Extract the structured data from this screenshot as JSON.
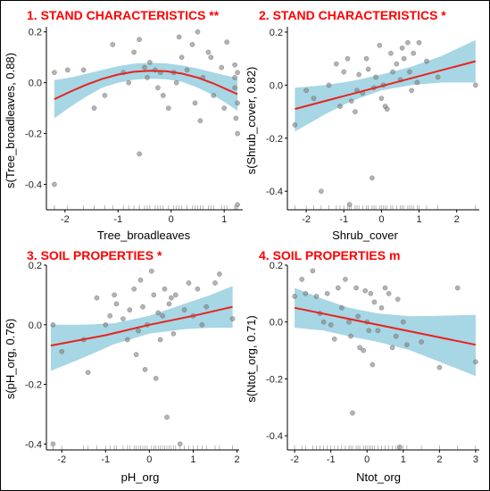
{
  "chart_data": [
    {
      "type": "scatter",
      "title": "1. STAND CHARACTERISTICS **",
      "xlabel": "Tree_broadleaves",
      "ylabel": "s(Tree_broadleaves, 0.88)",
      "xlim": [
        -2.35,
        1.35
      ],
      "ylim": [
        -0.5,
        0.22
      ],
      "xticks": [
        -2,
        -1,
        0,
        1
      ],
      "yticks": [
        -0.4,
        -0.2,
        0.0,
        0.2
      ],
      "xticklabels": [
        "-2",
        "-1",
        "0",
        "1"
      ],
      "yticklabels": [
        "-0.4",
        "-0.2",
        "0.0",
        "0.2"
      ],
      "fit": [
        [
          -2.2,
          -0.065
        ],
        [
          -1.9,
          -0.035
        ],
        [
          -1.6,
          -0.008
        ],
        [
          -1.3,
          0.015
        ],
        [
          -1.0,
          0.032
        ],
        [
          -0.7,
          0.043
        ],
        [
          -0.4,
          0.047
        ],
        [
          -0.1,
          0.045
        ],
        [
          0.2,
          0.036
        ],
        [
          0.5,
          0.02
        ],
        [
          0.8,
          -0.003
        ],
        [
          1.0,
          -0.022
        ],
        [
          1.25,
          -0.045
        ]
      ],
      "ci_upper": [
        [
          -2.2,
          0.01
        ],
        [
          -1.9,
          0.02
        ],
        [
          -1.6,
          0.035
        ],
        [
          -1.3,
          0.05
        ],
        [
          -1.0,
          0.065
        ],
        [
          -0.7,
          0.075
        ],
        [
          -0.4,
          0.078
        ],
        [
          -0.1,
          0.076
        ],
        [
          0.2,
          0.068
        ],
        [
          0.5,
          0.056
        ],
        [
          0.8,
          0.04
        ],
        [
          1.0,
          0.03
        ],
        [
          1.25,
          0.018
        ]
      ],
      "ci_lower": [
        [
          -2.2,
          -0.14
        ],
        [
          -1.9,
          -0.095
        ],
        [
          -1.6,
          -0.055
        ],
        [
          -1.3,
          -0.02
        ],
        [
          -1.0,
          0.0
        ],
        [
          -0.7,
          0.012
        ],
        [
          -0.4,
          0.016
        ],
        [
          -0.1,
          0.014
        ],
        [
          0.2,
          0.004
        ],
        [
          0.5,
          -0.02
        ],
        [
          0.8,
          -0.05
        ],
        [
          1.0,
          -0.075
        ],
        [
          1.25,
          -0.11
        ]
      ],
      "points": [
        [
          -2.2,
          -0.4
        ],
        [
          -2.2,
          0.04
        ],
        [
          -1.95,
          0.05
        ],
        [
          -1.65,
          0.05
        ],
        [
          -1.45,
          -0.1
        ],
        [
          -1.25,
          -0.05
        ],
        [
          -1.1,
          0.15
        ],
        [
          -0.9,
          0.04
        ],
        [
          -0.8,
          0.0
        ],
        [
          -0.7,
          0.12
        ],
        [
          -0.6,
          0.17
        ],
        [
          -0.6,
          -0.28
        ],
        [
          -0.5,
          0.06
        ],
        [
          -0.45,
          0.02
        ],
        [
          -0.4,
          0.08
        ],
        [
          -0.3,
          0.05
        ],
        [
          -0.25,
          -0.02
        ],
        [
          -0.2,
          0.04
        ],
        [
          -0.15,
          -0.05
        ],
        [
          -0.05,
          -0.1
        ],
        [
          0.05,
          0.04
        ],
        [
          0.1,
          0.0
        ],
        [
          0.15,
          0.18
        ],
        [
          0.2,
          0.1
        ],
        [
          0.3,
          0.05
        ],
        [
          0.4,
          0.15
        ],
        [
          0.45,
          -0.08
        ],
        [
          0.5,
          0.2
        ],
        [
          0.55,
          -0.15
        ],
        [
          0.6,
          0.02
        ],
        [
          0.7,
          0.12
        ],
        [
          0.75,
          0.1
        ],
        [
          0.8,
          -0.05
        ],
        [
          0.95,
          0.06
        ],
        [
          1.0,
          -0.1
        ],
        [
          1.05,
          0.16
        ],
        [
          1.2,
          0.07
        ],
        [
          1.2,
          0.02
        ],
        [
          1.2,
          -0.02
        ],
        [
          1.25,
          0.04
        ],
        [
          1.25,
          -0.08
        ],
        [
          1.22,
          -0.14
        ],
        [
          1.25,
          -0.2
        ],
        [
          1.25,
          -0.48
        ]
      ]
    },
    {
      "type": "scatter",
      "title": "2. STAND CHARACTERISTICS *",
      "xlabel": "Shrub_cover",
      "ylabel": "s(Shrub_cover, 0.82)",
      "xlim": [
        -2.5,
        2.6
      ],
      "ylim": [
        -0.47,
        0.22
      ],
      "xticks": [
        -2,
        -1,
        0,
        1,
        2
      ],
      "yticks": [
        -0.4,
        -0.2,
        0.0,
        0.2
      ],
      "xticklabels": [
        "-2",
        "-1",
        "0",
        "1",
        "2"
      ],
      "yticklabels": [
        "-0.4",
        "-0.2",
        "0.0",
        "0.2"
      ],
      "fit": [
        [
          -2.3,
          -0.09
        ],
        [
          2.5,
          0.09
        ]
      ],
      "ci_upper": [
        [
          -2.3,
          -0.01
        ],
        [
          -1.5,
          0.0
        ],
        [
          -0.8,
          0.015
        ],
        [
          0.0,
          0.04
        ],
        [
          0.8,
          0.07
        ],
        [
          1.6,
          0.11
        ],
        [
          2.5,
          0.17
        ]
      ],
      "ci_lower": [
        [
          -2.3,
          -0.175
        ],
        [
          -1.5,
          -0.11
        ],
        [
          -0.8,
          -0.06
        ],
        [
          0.0,
          -0.02
        ],
        [
          0.8,
          0.0
        ],
        [
          1.6,
          0.01
        ],
        [
          2.5,
          0.01
        ]
      ],
      "points": [
        [
          -2.3,
          -0.15
        ],
        [
          -2.0,
          -0.02
        ],
        [
          -1.8,
          -0.05
        ],
        [
          -1.6,
          -0.4
        ],
        [
          -1.4,
          0.0
        ],
        [
          -1.2,
          0.08
        ],
        [
          -1.1,
          -0.08
        ],
        [
          -1.0,
          0.05
        ],
        [
          -0.9,
          0.1
        ],
        [
          -0.85,
          -0.45
        ],
        [
          -0.8,
          -0.06
        ],
        [
          -0.7,
          -0.1
        ],
        [
          -0.65,
          -0.02
        ],
        [
          -0.6,
          0.04
        ],
        [
          -0.5,
          -0.03
        ],
        [
          -0.4,
          0.1
        ],
        [
          -0.35,
          0.06
        ],
        [
          -0.25,
          -0.35
        ],
        [
          -0.2,
          -0.01
        ],
        [
          -0.15,
          0.03
        ],
        [
          -0.05,
          0.15
        ],
        [
          0.0,
          -0.05
        ],
        [
          0.05,
          0.0
        ],
        [
          0.1,
          -0.08
        ],
        [
          0.15,
          -0.09
        ],
        [
          0.25,
          0.12
        ],
        [
          0.3,
          0.05
        ],
        [
          0.4,
          0.08
        ],
        [
          0.5,
          0.02
        ],
        [
          0.55,
          0.14
        ],
        [
          0.6,
          0.1
        ],
        [
          0.7,
          0.16
        ],
        [
          0.75,
          0.05
        ],
        [
          0.8,
          -0.02
        ],
        [
          0.85,
          0.12
        ],
        [
          0.95,
          0.01
        ],
        [
          1.0,
          0.16
        ],
        [
          1.2,
          0.09
        ],
        [
          1.5,
          0.03
        ],
        [
          2.5,
          0.0
        ]
      ]
    },
    {
      "type": "scatter",
      "title": "3. SOIL PROPERTIES *",
      "xlabel": "pH_org",
      "ylabel": "s(pH_org, 0.76)",
      "xlim": [
        -2.35,
        2.05
      ],
      "ylim": [
        -0.42,
        0.2
      ],
      "xticks": [
        -2,
        -1,
        0,
        1,
        2
      ],
      "yticks": [
        -0.4,
        -0.2,
        0.0,
        0.2
      ],
      "xticklabels": [
        "-2",
        "-1",
        "0",
        "1",
        "2"
      ],
      "yticklabels": [
        "-0.4",
        "-0.2",
        "0.0",
        "0.2"
      ],
      "fit": [
        [
          -2.25,
          -0.07
        ],
        [
          -1.0,
          -0.035
        ],
        [
          0.0,
          0.0
        ],
        [
          1.0,
          0.03
        ],
        [
          1.9,
          0.06
        ]
      ],
      "ci_upper": [
        [
          -2.25,
          0.0
        ],
        [
          -1.5,
          0.0
        ],
        [
          -0.8,
          0.005
        ],
        [
          0.0,
          0.03
        ],
        [
          0.8,
          0.07
        ],
        [
          1.4,
          0.1
        ],
        [
          1.9,
          0.13
        ]
      ],
      "ci_lower": [
        [
          -2.25,
          -0.155
        ],
        [
          -1.5,
          -0.11
        ],
        [
          -0.8,
          -0.065
        ],
        [
          0.0,
          -0.03
        ],
        [
          0.8,
          -0.015
        ],
        [
          1.4,
          -0.01
        ],
        [
          1.9,
          -0.01
        ]
      ],
      "points": [
        [
          -2.2,
          -0.4
        ],
        [
          -2.2,
          0.0
        ],
        [
          -2.0,
          -0.09
        ],
        [
          -1.5,
          -0.05
        ],
        [
          -1.4,
          -0.16
        ],
        [
          -1.2,
          0.09
        ],
        [
          -1.0,
          0.0
        ],
        [
          -0.9,
          0.03
        ],
        [
          -0.8,
          0.1
        ],
        [
          -0.75,
          0.07
        ],
        [
          -0.6,
          0.02
        ],
        [
          -0.5,
          -0.05
        ],
        [
          -0.45,
          0.05
        ],
        [
          -0.35,
          0.12
        ],
        [
          -0.3,
          -0.1
        ],
        [
          -0.25,
          -0.02
        ],
        [
          -0.2,
          0.15
        ],
        [
          -0.15,
          0.06
        ],
        [
          -0.1,
          -0.15
        ],
        [
          -0.05,
          0.0
        ],
        [
          0.05,
          0.18
        ],
        [
          0.1,
          0.1
        ],
        [
          0.15,
          -0.18
        ],
        [
          0.2,
          0.04
        ],
        [
          0.25,
          -0.05
        ],
        [
          0.3,
          0.03
        ],
        [
          0.35,
          0.12
        ],
        [
          0.4,
          -0.31
        ],
        [
          0.45,
          0.07
        ],
        [
          0.5,
          0.09
        ],
        [
          0.55,
          -0.03
        ],
        [
          0.6,
          0.1
        ],
        [
          0.7,
          -0.4
        ],
        [
          0.8,
          0.05
        ],
        [
          0.9,
          0.14
        ],
        [
          1.0,
          0.03
        ],
        [
          1.1,
          0.12
        ],
        [
          1.2,
          0.0
        ],
        [
          1.3,
          0.06
        ],
        [
          1.5,
          0.14
        ],
        [
          1.6,
          0.17
        ],
        [
          1.9,
          0.02
        ]
      ]
    },
    {
      "type": "scatter",
      "title": "4. SOIL PROPERTIES m",
      "xlabel": "Ntot_org",
      "ylabel": "s(Ntot_org, 0.71)",
      "xlim": [
        -2.2,
        3.1
      ],
      "ylim": [
        -0.45,
        0.2
      ],
      "xticks": [
        -2,
        -1,
        0,
        1,
        2,
        3
      ],
      "yticks": [
        -0.4,
        -0.2,
        0.0,
        0.2
      ],
      "xticklabels": [
        "-2",
        "-1",
        "0",
        "1",
        "2",
        "3"
      ],
      "yticklabels": [
        "-0.4",
        "-0.2",
        "0.0",
        "0.2"
      ],
      "fit": [
        [
          -2.0,
          0.05
        ],
        [
          3.0,
          -0.08
        ]
      ],
      "ci_upper": [
        [
          -2.0,
          0.12
        ],
        [
          -1.2,
          0.08
        ],
        [
          -0.5,
          0.05
        ],
        [
          0.3,
          0.03
        ],
        [
          1.2,
          0.02
        ],
        [
          2.0,
          0.022
        ],
        [
          3.0,
          0.025
        ]
      ],
      "ci_lower": [
        [
          -2.0,
          -0.02
        ],
        [
          -1.2,
          -0.03
        ],
        [
          -0.5,
          -0.05
        ],
        [
          0.3,
          -0.07
        ],
        [
          1.2,
          -0.1
        ],
        [
          2.0,
          -0.14
        ],
        [
          3.0,
          -0.19
        ]
      ],
      "points": [
        [
          -2.0,
          0.09
        ],
        [
          -1.8,
          0.15
        ],
        [
          -1.7,
          0.1
        ],
        [
          -1.5,
          0.18
        ],
        [
          -1.4,
          0.09
        ],
        [
          -1.3,
          0.03
        ],
        [
          -1.2,
          0.0
        ],
        [
          -1.1,
          0.1
        ],
        [
          -1.0,
          -0.01
        ],
        [
          -0.9,
          -0.06
        ],
        [
          -0.8,
          0.12
        ],
        [
          -0.7,
          0.05
        ],
        [
          -0.6,
          0.15
        ],
        [
          -0.5,
          0.0
        ],
        [
          -0.45,
          -0.05
        ],
        [
          -0.4,
          -0.32
        ],
        [
          -0.3,
          0.12
        ],
        [
          -0.25,
          0.02
        ],
        [
          -0.2,
          -0.09
        ],
        [
          -0.1,
          -0.1
        ],
        [
          -0.05,
          0.11
        ],
        [
          0.0,
          0.0
        ],
        [
          0.05,
          -0.03
        ],
        [
          0.1,
          0.1
        ],
        [
          0.15,
          -0.15
        ],
        [
          0.2,
          0.07
        ],
        [
          0.3,
          -0.03
        ],
        [
          0.4,
          0.05
        ],
        [
          0.5,
          0.12
        ],
        [
          0.6,
          0.1
        ],
        [
          0.7,
          -0.09
        ],
        [
          0.8,
          -0.05
        ],
        [
          0.85,
          0.08
        ],
        [
          0.9,
          -0.44
        ],
        [
          1.0,
          0.0
        ],
        [
          1.1,
          -0.08
        ],
        [
          1.5,
          -0.07
        ],
        [
          2.0,
          -0.16
        ],
        [
          2.5,
          0.12
        ],
        [
          3.0,
          -0.14
        ]
      ]
    }
  ],
  "colors": {
    "title": "#ff0000",
    "fit_line": "#e8231f",
    "ci_band": "#a7d6e4",
    "points": "#808080",
    "axis": "#000000"
  }
}
